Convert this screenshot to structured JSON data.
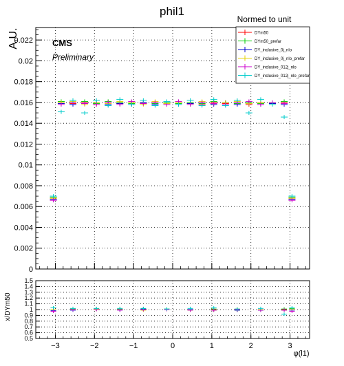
{
  "chart_data": [
    {
      "type": "scatter",
      "title": "phil1",
      "subtitle": "Normed to unit",
      "ylabel": "A.U.",
      "xlim": [
        -3.5,
        3.5
      ],
      "ylim": [
        0,
        0.0232
      ],
      "grid": true,
      "legend_position": "top-right",
      "annotations": [
        "CMS",
        "Preliminary"
      ],
      "xticks": [
        -3,
        -2,
        -1,
        0,
        1,
        2,
        3
      ],
      "yticks": [
        0,
        0.002,
        0.004,
        0.006,
        0.008,
        0.01,
        0.012,
        0.014,
        0.016,
        0.018,
        0.02,
        0.022
      ],
      "ytick_labels": [
        "0",
        "0.002",
        "0.004",
        "0.006",
        "0.008",
        "0.01",
        "0.012",
        "0.014",
        "0.016",
        "0.018",
        "0.02",
        "0.022"
      ],
      "series": [
        {
          "name": "DYm50",
          "color": "#ff0000",
          "x": [
            -3.05,
            -2.85,
            -2.55,
            -2.25,
            -1.95,
            -1.65,
            -1.35,
            -1.05,
            -0.75,
            -0.45,
            -0.15,
            0.15,
            0.45,
            0.75,
            1.05,
            1.35,
            1.65,
            1.95,
            2.25,
            2.55,
            2.85,
            3.05
          ],
          "y": [
            0.0068,
            0.016,
            0.0159,
            0.016,
            0.0158,
            0.016,
            0.0159,
            0.016,
            0.0159,
            0.016,
            0.0158,
            0.016,
            0.0159,
            0.0158,
            0.016,
            0.0159,
            0.016,
            0.0158,
            0.016,
            0.0159,
            0.016,
            0.0068
          ]
        },
        {
          "name": "DYm50_prefar",
          "color": "#00cc00",
          "x": [
            -3.05,
            -2.85,
            -2.55,
            -2.25,
            -1.95,
            -1.65,
            -1.35,
            -1.05,
            -0.75,
            -0.45,
            -0.15,
            0.15,
            0.45,
            0.75,
            1.05,
            1.35,
            1.65,
            1.95,
            2.25,
            2.55,
            2.85,
            3.05
          ],
          "y": [
            0.0069,
            0.0161,
            0.016,
            0.0161,
            0.0159,
            0.0161,
            0.016,
            0.0159,
            0.016,
            0.0159,
            0.016,
            0.0159,
            0.016,
            0.0159,
            0.0161,
            0.016,
            0.0159,
            0.016,
            0.0159,
            0.016,
            0.0161,
            0.0069
          ]
        },
        {
          "name": "DY_inclusive_0j_nlo",
          "color": "#0000cc",
          "x": [
            -3.05,
            -2.85,
            -2.55,
            -2.25,
            -1.95,
            -1.65,
            -1.35,
            -1.05,
            -0.75,
            -0.45,
            -0.15,
            0.15,
            0.45,
            0.75,
            1.05,
            1.35,
            1.65,
            1.95,
            2.25,
            2.55,
            2.85,
            3.05
          ],
          "y": [
            0.0067,
            0.0159,
            0.0158,
            0.0159,
            0.016,
            0.0158,
            0.0159,
            0.0158,
            0.016,
            0.0158,
            0.0159,
            0.0158,
            0.0159,
            0.016,
            0.0158,
            0.016,
            0.0158,
            0.0159,
            0.0158,
            0.0159,
            0.0158,
            0.0067
          ]
        },
        {
          "name": "DY_inclusive_0j_nlo_prefar",
          "color": "#e6d200",
          "x": [
            -3.05,
            -2.85,
            -2.55,
            -2.25,
            -1.95,
            -1.65,
            -1.35,
            -1.05,
            -0.75,
            -0.45,
            -0.15,
            0.15,
            0.45,
            0.75,
            1.05,
            1.35,
            1.65,
            1.95,
            2.25,
            2.55,
            2.85,
            3.05
          ],
          "y": [
            0.0068,
            0.016,
            0.0161,
            0.0158,
            0.016,
            0.0159,
            0.0161,
            0.016,
            0.0158,
            0.0161,
            0.0159,
            0.016,
            0.0158,
            0.0161,
            0.0159,
            0.016,
            0.0161,
            0.0159,
            0.016,
            0.0158,
            0.0159,
            0.0068
          ]
        },
        {
          "name": "DY_inclusive_012j_nlo",
          "color": "#cc00cc",
          "x": [
            -3.05,
            -2.85,
            -2.55,
            -2.25,
            -1.95,
            -1.65,
            -1.35,
            -1.05,
            -0.75,
            -0.45,
            -0.15,
            0.15,
            0.45,
            0.75,
            1.05,
            1.35,
            1.65,
            1.95,
            2.25,
            2.55,
            2.85,
            3.05
          ],
          "y": [
            0.0066,
            0.0158,
            0.016,
            0.0159,
            0.0158,
            0.016,
            0.0158,
            0.0161,
            0.0159,
            0.016,
            0.0158,
            0.0161,
            0.0158,
            0.016,
            0.0159,
            0.0158,
            0.016,
            0.0161,
            0.0158,
            0.016,
            0.0159,
            0.0066
          ]
        },
        {
          "name": "DY_inclusive_012j_nlo_prefar",
          "color": "#00cccc",
          "x": [
            -3.05,
            -2.85,
            -2.55,
            -2.25,
            -1.95,
            -1.65,
            -1.35,
            -1.05,
            -0.75,
            -0.45,
            -0.15,
            0.15,
            0.45,
            0.75,
            1.05,
            1.35,
            1.65,
            1.95,
            2.25,
            2.55,
            2.85,
            3.05
          ],
          "y": [
            0.007,
            0.0151,
            0.0162,
            0.015,
            0.0162,
            0.0157,
            0.0163,
            0.0158,
            0.0162,
            0.0157,
            0.0161,
            0.0158,
            0.0162,
            0.0157,
            0.0163,
            0.0157,
            0.0162,
            0.015,
            0.0163,
            0.0158,
            0.0146,
            0.007
          ]
        }
      ]
    },
    {
      "type": "scatter",
      "xlabel": "φ(l1)",
      "ylabel": "x/DYm50",
      "xlim": [
        -3.5,
        3.5
      ],
      "ylim": [
        0.5,
        1.5
      ],
      "grid": true,
      "xticks": [
        -3,
        -2,
        -1,
        0,
        1,
        2,
        3
      ],
      "xtick_labels": [
        "−3",
        "−2",
        "−1",
        "0",
        "1",
        "2",
        "3"
      ],
      "yticks": [
        0.5,
        0.6,
        0.7,
        0.8,
        0.9,
        1.0,
        1.1,
        1.2,
        1.3,
        1.4,
        1.5
      ],
      "ytick_labels": [
        "0.5",
        "0.6",
        "0.7",
        "0.8",
        "0.9",
        "1",
        "1.1",
        "1.2",
        "1.3",
        "1.4",
        "1.5"
      ],
      "series": [
        {
          "name": "DYm50",
          "color": "#ff0000",
          "x": [
            -3.05,
            -2.55,
            -1.95,
            -1.35,
            -0.75,
            -0.15,
            0.45,
            1.05,
            1.65,
            2.25,
            2.85,
            3.05
          ],
          "y": [
            1.0,
            1.0,
            1.0,
            1.0,
            1.0,
            1.0,
            1.0,
            1.0,
            1.0,
            1.0,
            1.0,
            1.0
          ]
        },
        {
          "name": "DYm50_prefar",
          "color": "#00cc00",
          "x": [
            -3.05,
            -2.55,
            -1.95,
            -1.35,
            -0.75,
            -0.15,
            0.45,
            1.05,
            1.65,
            2.25,
            2.85,
            3.05
          ],
          "y": [
            1.03,
            1.01,
            1.01,
            1.0,
            1.01,
            1.01,
            1.0,
            1.01,
            0.99,
            1.0,
            1.01,
            1.02
          ]
        },
        {
          "name": "DY_inclusive_0j_nlo",
          "color": "#0000cc",
          "x": [
            -3.05,
            -2.55,
            -1.95,
            -1.35,
            -0.75,
            -0.15,
            0.45,
            1.05,
            1.65,
            2.25,
            2.85,
            3.05
          ],
          "y": [
            0.98,
            0.99,
            1.01,
            1.0,
            1.01,
            1.0,
            1.0,
            0.99,
            0.99,
            0.99,
            0.99,
            0.99
          ]
        },
        {
          "name": "DY_inclusive_0j_nlo_prefar",
          "color": "#e6d200",
          "x": [
            -3.05,
            -2.55,
            -1.95,
            -1.35,
            -0.75,
            -0.15,
            0.45,
            1.05,
            1.65,
            2.25,
            2.85,
            3.05
          ],
          "y": [
            1.0,
            1.01,
            1.01,
            1.01,
            0.99,
            1.0,
            0.99,
            0.99,
            1.01,
            1.0,
            0.99,
            1.0
          ]
        },
        {
          "name": "DY_inclusive_012j_nlo",
          "color": "#cc00cc",
          "x": [
            -3.05,
            -2.55,
            -1.95,
            -1.35,
            -0.75,
            -0.15,
            0.45,
            1.05,
            1.65,
            2.25,
            2.85,
            3.05
          ],
          "y": [
            0.97,
            1.0,
            1.0,
            0.99,
            1.0,
            1.0,
            0.99,
            0.99,
            1.0,
            0.99,
            0.99,
            0.97
          ]
        },
        {
          "name": "DY_inclusive_012j_nlo_prefar",
          "color": "#00cccc",
          "x": [
            -3.05,
            -2.55,
            -1.95,
            -1.35,
            -0.75,
            -0.15,
            0.45,
            1.05,
            1.65,
            2.25,
            2.85,
            3.05
          ],
          "y": [
            1.03,
            1.02,
            1.02,
            1.02,
            1.02,
            1.01,
            1.02,
            1.03,
            1.01,
            1.02,
            0.92,
            1.03
          ]
        }
      ]
    }
  ]
}
